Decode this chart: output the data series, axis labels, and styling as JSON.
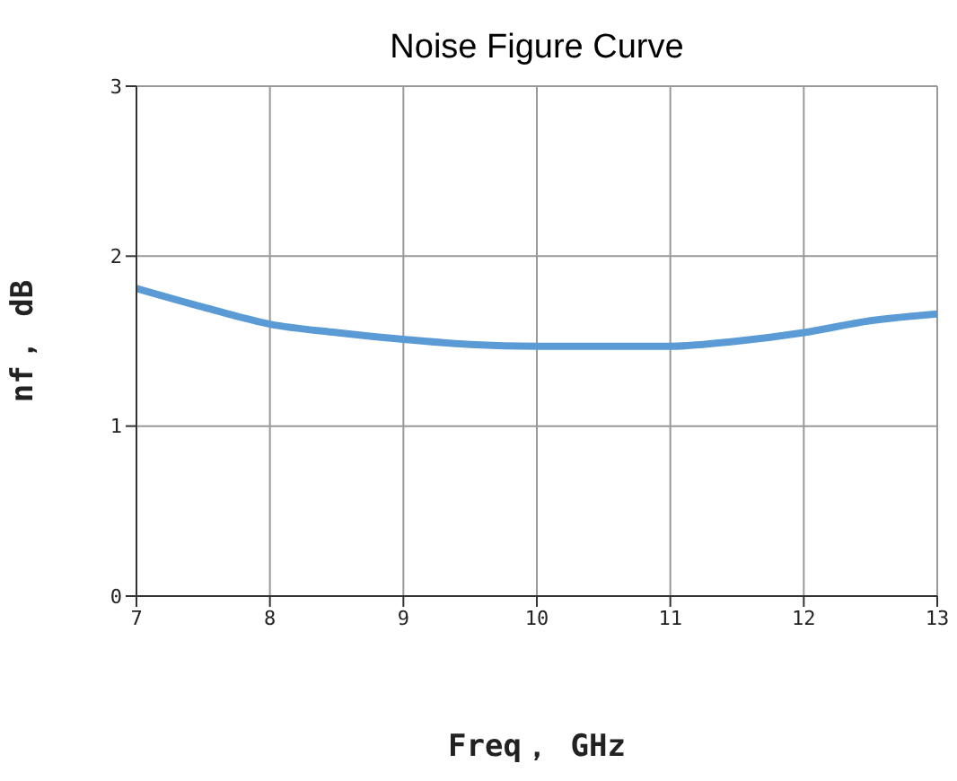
{
  "chart_data": {
    "type": "line",
    "title": "Noise Figure Curve",
    "xlabel": "Freq， GHz",
    "ylabel": "nf， dB",
    "x": [
      7,
      7.5,
      8,
      8.5,
      9,
      9.5,
      10,
      10.5,
      11,
      11.5,
      12,
      12.5,
      13
    ],
    "series": [
      {
        "color": "#5b9bd5",
        "values": [
          1.81,
          1.7,
          1.6,
          1.55,
          1.51,
          1.48,
          1.47,
          1.47,
          1.47,
          1.5,
          1.55,
          1.62,
          1.66
        ]
      }
    ],
    "xlim": [
      7,
      13
    ],
    "xticks": [
      7,
      8,
      9,
      10,
      11,
      12,
      13
    ],
    "ylim": [
      0,
      3
    ],
    "yticks": [
      0,
      1,
      2,
      3
    ],
    "grid": true,
    "marker": "none",
    "line_style": "solid",
    "legend": false
  }
}
